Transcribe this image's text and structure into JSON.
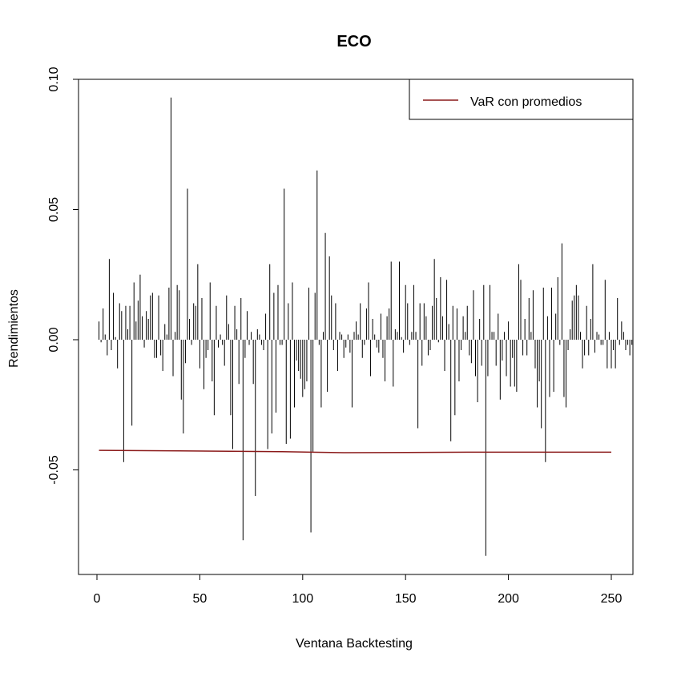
{
  "chart_data": {
    "type": "bar",
    "title": "ECO",
    "xlabel": "Ventana Backtesting",
    "ylabel": "Rendimientos",
    "xlim": [
      -2,
      259
    ],
    "ylim": [
      -0.09,
      0.1
    ],
    "x_ticks": [
      0,
      50,
      100,
      150,
      200,
      250
    ],
    "x_tick_labels": [
      "0",
      "50",
      "100",
      "150",
      "200",
      "250"
    ],
    "y_ticks": [
      -0.05,
      0.0,
      0.05,
      0.1
    ],
    "y_tick_labels": [
      "-0.05",
      "0.00",
      "0.05",
      "0.10"
    ],
    "grid": false,
    "legend": {
      "position": "top-right",
      "entries": [
        {
          "label": "VaR con promedios",
          "color": "#8b1a1a"
        }
      ]
    },
    "series": [
      {
        "style": "vertical-lines",
        "color": "#000000",
        "x_start": 1,
        "values": [
          0.007,
          -0.001,
          0.012,
          0.002,
          -0.006,
          0.031,
          -0.004,
          0.018,
          0.001,
          -0.011,
          0.014,
          0.011,
          -0.047,
          0.013,
          0.004,
          0.013,
          -0.033,
          0.022,
          0.007,
          0.015,
          0.025,
          0.009,
          -0.003,
          0.011,
          0.008,
          0.017,
          0.018,
          -0.007,
          -0.007,
          0.017,
          -0.006,
          -0.012,
          0.006,
          0.002,
          0.02,
          0.093,
          -0.014,
          0.003,
          0.021,
          0.019,
          -0.023,
          -0.036,
          -0.009,
          0.058,
          0.008,
          -0.002,
          0.014,
          0.013,
          0.029,
          -0.011,
          0.016,
          -0.019,
          -0.007,
          -0.004,
          0.022,
          -0.016,
          -0.029,
          0.013,
          -0.003,
          0.002,
          -0.002,
          -0.01,
          0.017,
          0.006,
          -0.029,
          -0.042,
          0.013,
          0.004,
          -0.017,
          0.016,
          -0.077,
          -0.007,
          0.011,
          -0.002,
          0.003,
          -0.017,
          -0.06,
          0.004,
          0.002,
          -0.002,
          -0.004,
          0.01,
          -0.042,
          0.029,
          -0.036,
          0.018,
          -0.028,
          0.021,
          -0.002,
          -0.002,
          0.058,
          -0.04,
          0.014,
          -0.038,
          0.022,
          -0.026,
          -0.008,
          -0.012,
          -0.015,
          -0.022,
          -0.019,
          -0.016,
          0.02,
          -0.074,
          -0.043,
          0.018,
          0.065,
          -0.002,
          -0.026,
          0.003,
          0.041,
          -0.02,
          0.032,
          0.017,
          -0.004,
          0.014,
          -0.012,
          0.003,
          0.002,
          -0.007,
          -0.003,
          0.002,
          -0.005,
          -0.026,
          0.003,
          0.007,
          0.002,
          0.014,
          -0.007,
          -0.002,
          0.012,
          0.022,
          -0.014,
          0.008,
          0.002,
          -0.003,
          -0.005,
          0.01,
          -0.007,
          -0.016,
          0.009,
          0.012,
          0.03,
          -0.018,
          0.004,
          0.003,
          0.03,
          0.001,
          -0.005,
          0.021,
          0.014,
          -0.002,
          0.003,
          0.021,
          0.003,
          -0.034,
          0.014,
          -0.01,
          0.014,
          0.009,
          -0.006,
          -0.004,
          0.013,
          0.031,
          0.016,
          -0.001,
          0.024,
          0.009,
          -0.012,
          0.023,
          0.006,
          -0.039,
          0.013,
          -0.029,
          0.012,
          -0.016,
          -0.004,
          0.009,
          0.003,
          0.013,
          -0.006,
          -0.009,
          0.019,
          -0.014,
          -0.024,
          0.008,
          -0.01,
          0.021,
          -0.083,
          -0.014,
          0.021,
          0.003,
          0.003,
          -0.01,
          0.01,
          -0.023,
          -0.008,
          0.003,
          -0.014,
          0.007,
          -0.018,
          -0.007,
          -0.018,
          -0.02,
          0.029,
          0.023,
          -0.006,
          0.008,
          -0.006,
          0.016,
          0.003,
          0.019,
          -0.011,
          -0.026,
          -0.016,
          -0.034,
          0.02,
          -0.047,
          0.009,
          -0.022,
          0.02,
          -0.02,
          0.01,
          0.024,
          -0.002,
          0.037,
          -0.022,
          -0.026,
          -0.004,
          0.004,
          0.015,
          0.017,
          0.021,
          0.017,
          0.003,
          -0.011,
          -0.006,
          0.013,
          -0.006,
          0.008,
          0.029,
          -0.005,
          0.003,
          0.002,
          -0.002,
          -0.002,
          0.023,
          -0.011,
          0.003,
          -0.011,
          -0.004,
          -0.011,
          0.016,
          -0.002,
          0.007,
          0.003,
          -0.004,
          -0.002,
          -0.006,
          -0.002
        ]
      },
      {
        "name": "VaR con promedios",
        "style": "line",
        "color": "#8b1a1a",
        "x": [
          1,
          40,
          90,
          120,
          180,
          250
        ],
        "values": [
          -0.0425,
          -0.0427,
          -0.043,
          -0.0434,
          -0.0432,
          -0.0432
        ]
      }
    ]
  }
}
